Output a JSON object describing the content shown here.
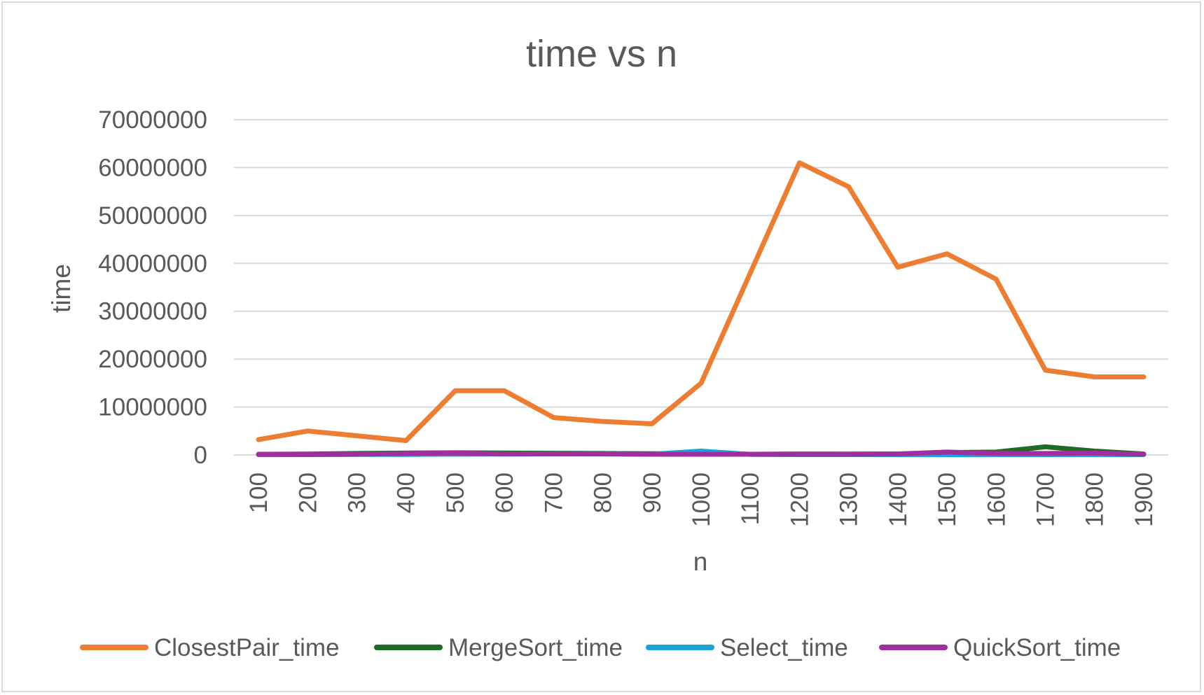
{
  "chart_data": {
    "type": "line",
    "title": "time vs n",
    "xlabel": "n",
    "ylabel": "time",
    "categories": [
      "100",
      "200",
      "300",
      "400",
      "500",
      "600",
      "700",
      "800",
      "900",
      "1000",
      "1100",
      "1200",
      "1300",
      "1400",
      "1500",
      "1600",
      "1700",
      "1800",
      "1900"
    ],
    "ylim": [
      0,
      70000000
    ],
    "yticks": [
      "0",
      "10000000",
      "20000000",
      "30000000",
      "40000000",
      "50000000",
      "60000000",
      "70000000"
    ],
    "grid": true,
    "legend_position": "bottom",
    "series": [
      {
        "name": "ClosestPair_time",
        "color": "#ED7D31",
        "values": [
          3200000,
          5000000,
          4000000,
          3000000,
          13400000,
          13400000,
          7800000,
          7000000,
          6500000,
          15000000,
          38000000,
          61000000,
          56000000,
          39200000,
          42000000,
          36700000,
          17700000,
          16300000,
          16300000
        ]
      },
      {
        "name": "MergeSort_time",
        "color": "#1E6B24",
        "values": [
          150000,
          180000,
          300000,
          400000,
          450000,
          400000,
          350000,
          300000,
          250000,
          300000,
          150000,
          200000,
          180000,
          200000,
          500000,
          600000,
          1700000,
          800000,
          200000
        ]
      },
      {
        "name": "Select_time",
        "color": "#1AA3DB",
        "values": [
          60000,
          80000,
          100000,
          120000,
          150000,
          180000,
          200000,
          200000,
          150000,
          800000,
          100000,
          80000,
          80000,
          80000,
          50000,
          80000,
          80000,
          80000,
          80000
        ]
      },
      {
        "name": "QuickSort_time",
        "color": "#A12E9E",
        "values": [
          100000,
          120000,
          150000,
          300000,
          400000,
          200000,
          200000,
          200000,
          150000,
          150000,
          150000,
          150000,
          150000,
          200000,
          600000,
          300000,
          300000,
          400000,
          150000
        ]
      }
    ]
  }
}
